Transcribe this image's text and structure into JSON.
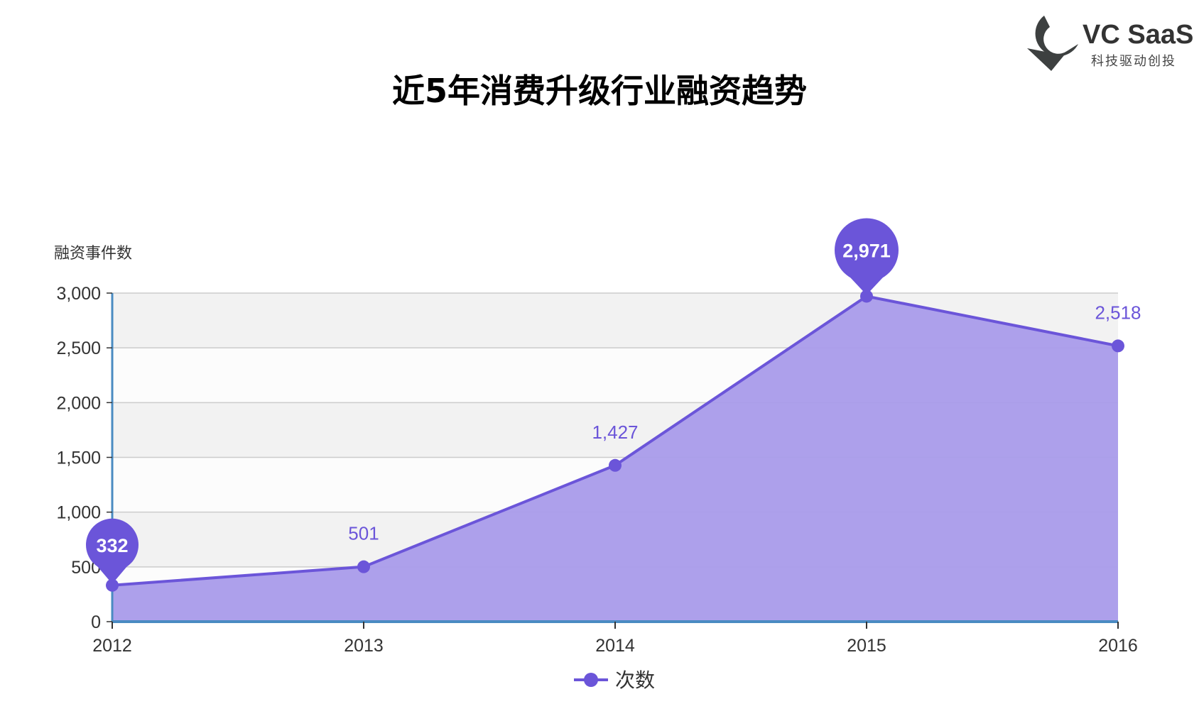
{
  "chart_data": {
    "type": "area",
    "title": "近5年消费升级行业融资趋势",
    "ylabel": "融资事件数",
    "xlabel": "",
    "categories": [
      "2012",
      "2013",
      "2014",
      "2015",
      "2016"
    ],
    "series": [
      {
        "name": "次数",
        "values": [
          332,
          501,
          1427,
          2971,
          2518
        ]
      }
    ],
    "ylim": [
      0,
      3000
    ],
    "yticks": [
      0,
      500,
      1000,
      1500,
      2000,
      2500,
      3000
    ],
    "ytick_labels": [
      "0",
      "500",
      "1,000",
      "1,500",
      "2,000",
      "2,500",
      "3,000"
    ],
    "data_labels": [
      "332",
      "501",
      "1,427",
      "2,971",
      "2,518"
    ],
    "highlighted": {
      "min": "332",
      "max": "2,971"
    },
    "grid": true,
    "legend_position": "bottom-center",
    "colors": {
      "line": "#6b55d9",
      "area": "#a99bea",
      "axis": "#4a8bc2",
      "band": "#f2f2f2",
      "grid": "#cccccc"
    }
  },
  "logo": {
    "name": "VC SaaS",
    "tagline": "科技驱动创投",
    "icon": "vc-saas-logo-icon"
  }
}
